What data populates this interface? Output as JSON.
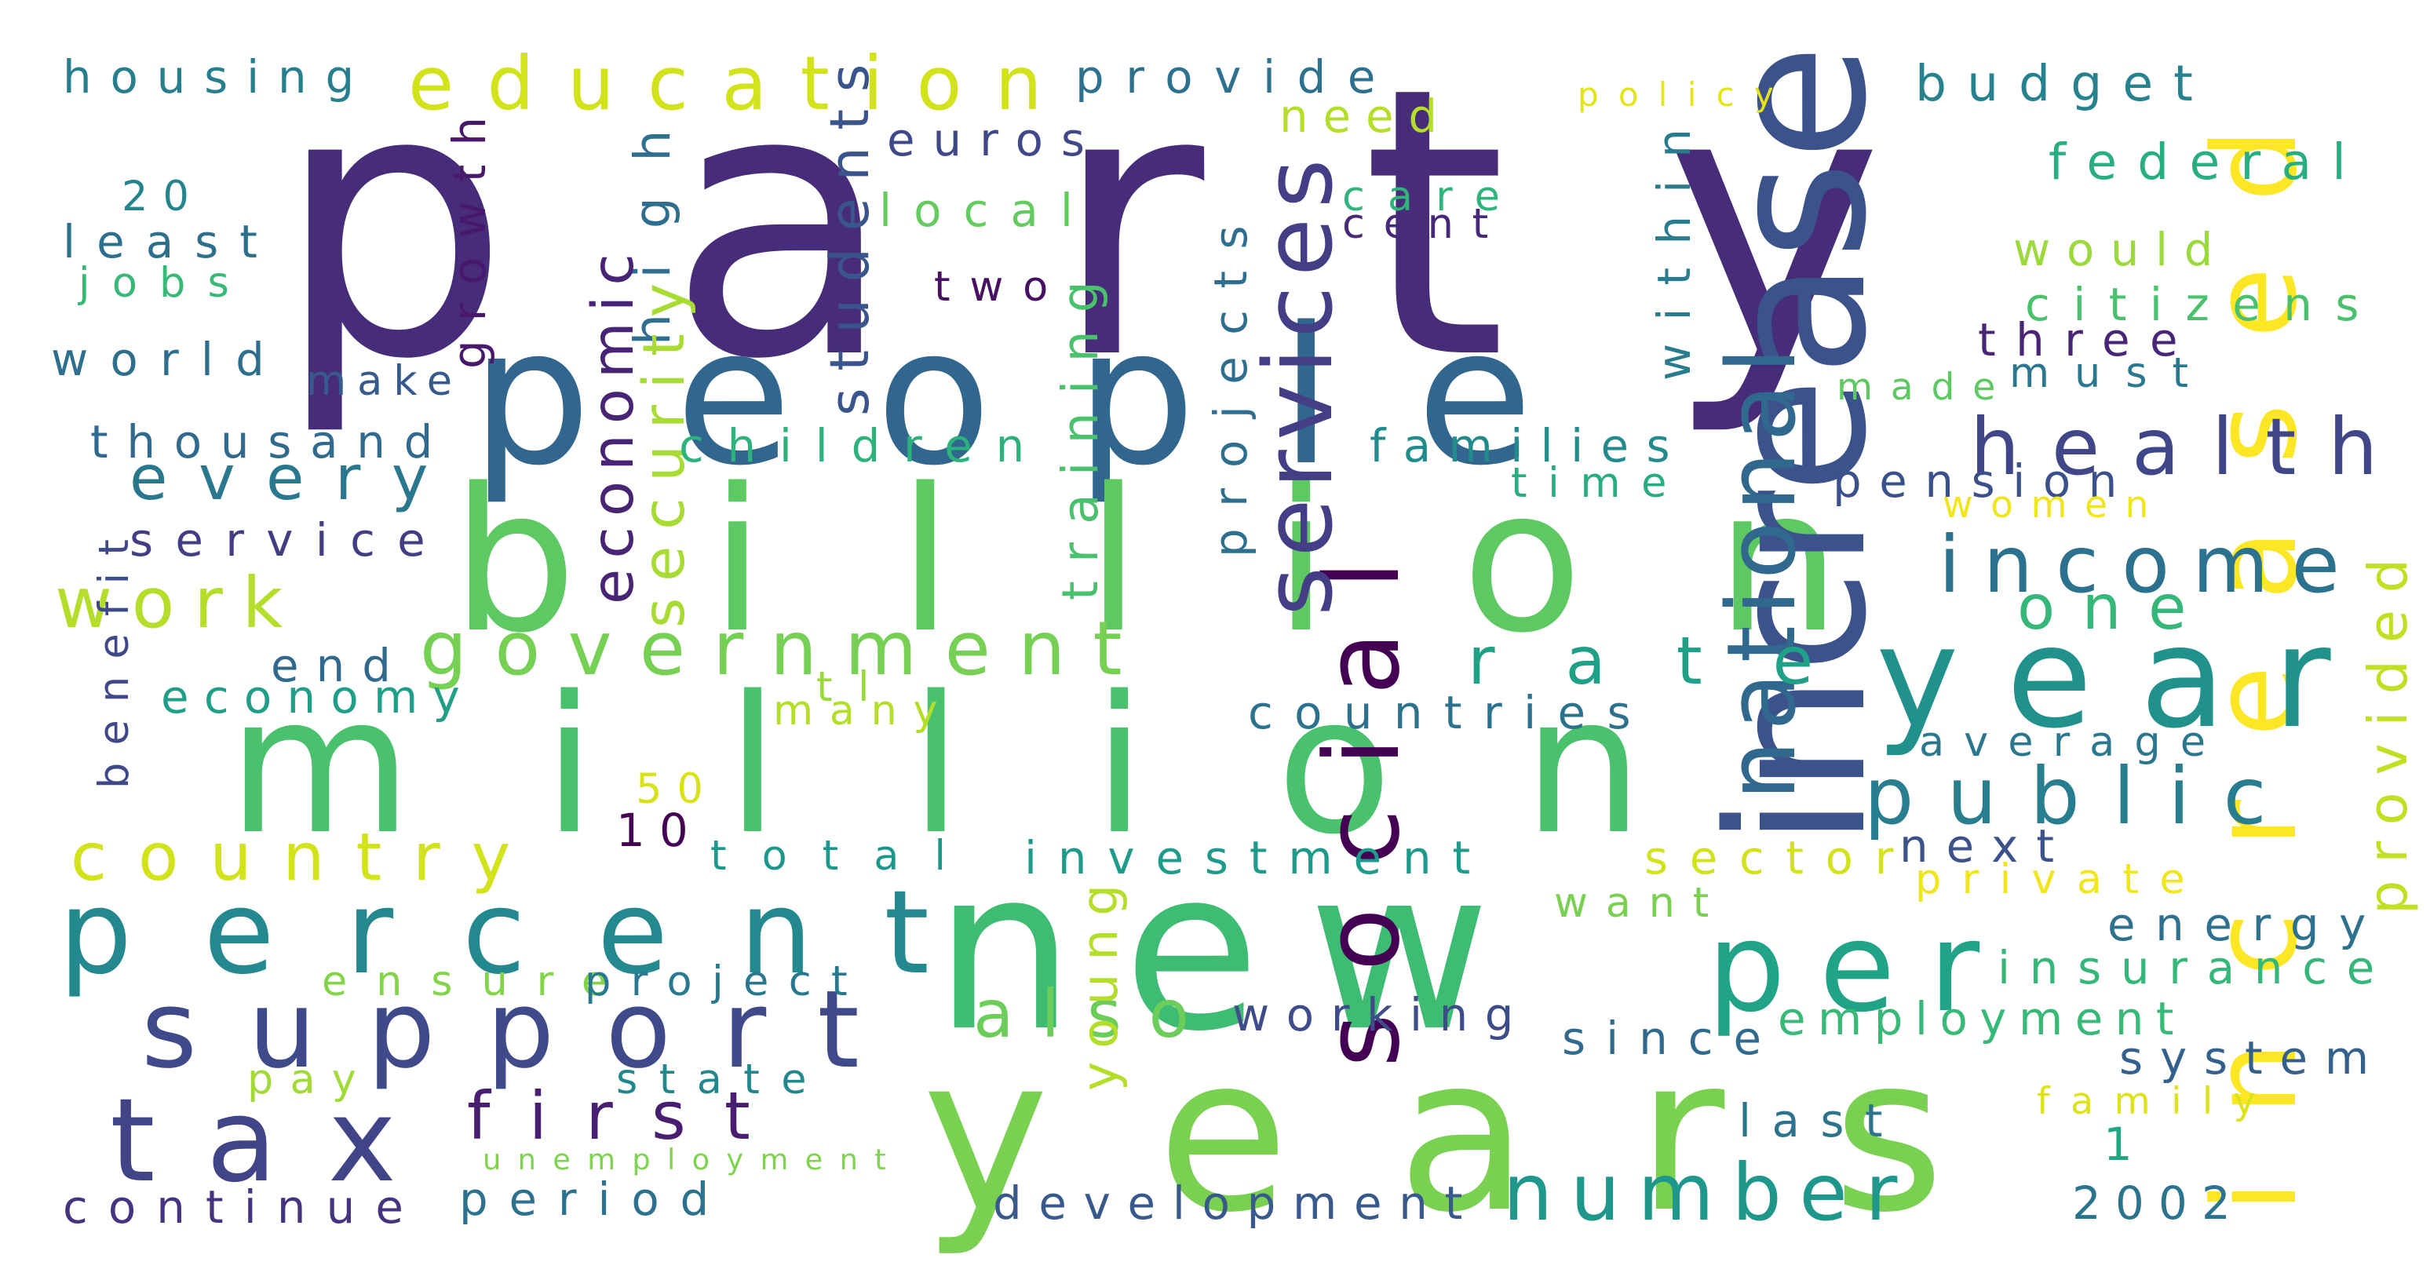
{
  "words": [
    {
      "text": "party",
      "color": "#472c7a"
    },
    {
      "text": "people",
      "color": "#31668e"
    },
    {
      "text": "billion",
      "color": "#5ec962"
    },
    {
      "text": "million",
      "color": "#4ac16d"
    },
    {
      "text": "new",
      "color": "#3fbc73"
    },
    {
      "text": "years",
      "color": "#7ad151"
    },
    {
      "text": "percent",
      "color": "#23898e"
    },
    {
      "text": "increase",
      "color": "#3b528b"
    },
    {
      "text": "increased",
      "color": "#fde725"
    },
    {
      "text": "year",
      "color": "#21918c"
    },
    {
      "text": "support",
      "color": "#3e4a89"
    },
    {
      "text": "tax",
      "color": "#414487"
    },
    {
      "text": "per",
      "color": "#20a386"
    },
    {
      "text": "social",
      "color": "#440154"
    },
    {
      "text": "national",
      "color": "#31688e"
    },
    {
      "text": "services",
      "color": "#433e85"
    },
    {
      "text": "health",
      "color": "#3f4788"
    },
    {
      "text": "income",
      "color": "#2c728e"
    },
    {
      "text": "public",
      "color": "#287d8e"
    },
    {
      "text": "government",
      "color": "#75d054"
    },
    {
      "text": "country",
      "color": "#d2e21b"
    },
    {
      "text": "education",
      "color": "#d2e21b"
    },
    {
      "text": "number",
      "color": "#1f988b"
    },
    {
      "text": "first",
      "color": "#481f70"
    },
    {
      "text": "rate",
      "color": "#1fa187"
    },
    {
      "text": "work",
      "color": "#b5de2b"
    },
    {
      "text": "every",
      "color": "#2a788e"
    },
    {
      "text": "one",
      "color": "#35b779"
    },
    {
      "text": "also",
      "color": "#6ccd5a"
    },
    {
      "text": "housing",
      "color": "#277f8e"
    },
    {
      "text": "provide",
      "color": "#2d718e"
    },
    {
      "text": "budget",
      "color": "#26828e"
    },
    {
      "text": "federal",
      "color": "#29af7f"
    },
    {
      "text": "policy",
      "color": "#e5e419"
    },
    {
      "text": "need",
      "color": "#b5de2b"
    },
    {
      "text": "euros",
      "color": "#3f4889"
    },
    {
      "text": "local",
      "color": "#63cb5f"
    },
    {
      "text": "care",
      "color": "#2fb47c"
    },
    {
      "text": "cent",
      "color": "#482878"
    },
    {
      "text": "would",
      "color": "#9bd93c"
    },
    {
      "text": "citizens",
      "color": "#4ac16d"
    },
    {
      "text": "three",
      "color": "#482576"
    },
    {
      "text": "made",
      "color": "#5ec962"
    },
    {
      "text": "must",
      "color": "#2a788e"
    },
    {
      "text": "two",
      "color": "#471063"
    },
    {
      "text": "growth",
      "color": "#48186a"
    },
    {
      "text": "high",
      "color": "#2e6e8e"
    },
    {
      "text": "security",
      "color": "#a8db34"
    },
    {
      "text": "economic",
      "color": "#482475"
    },
    {
      "text": "students",
      "color": "#3a548c"
    },
    {
      "text": "training",
      "color": "#4ac16d"
    },
    {
      "text": "projects",
      "color": "#2e6e8e"
    },
    {
      "text": "within",
      "color": "#287c8e"
    },
    {
      "text": "20",
      "color": "#25848e"
    },
    {
      "text": "least",
      "color": "#2d708e"
    },
    {
      "text": "jobs",
      "color": "#38b977"
    },
    {
      "text": "world",
      "color": "#2e6f8e"
    },
    {
      "text": "make",
      "color": "#375a8c"
    },
    {
      "text": "thousand",
      "color": "#306a8e"
    },
    {
      "text": "children",
      "color": "#2db27d"
    },
    {
      "text": "families",
      "color": "#228c8d"
    },
    {
      "text": "time",
      "color": "#27ad81"
    },
    {
      "text": "pension",
      "color": "#3b518b"
    },
    {
      "text": "women",
      "color": "#f1e51d"
    },
    {
      "text": "service",
      "color": "#433d84"
    },
    {
      "text": "benefit",
      "color": "#3f4889"
    },
    {
      "text": "end",
      "color": "#31688e"
    },
    {
      "text": "economy",
      "color": "#1f9f88"
    },
    {
      "text": "tl",
      "color": "#9bd93c"
    },
    {
      "text": "many",
      "color": "#b5de2b"
    },
    {
      "text": "countries",
      "color": "#2c728e"
    },
    {
      "text": "average",
      "color": "#2a778e"
    },
    {
      "text": "provided",
      "color": "#c2df23"
    },
    {
      "text": "50",
      "color": "#d8e219"
    },
    {
      "text": "10",
      "color": "#440154"
    },
    {
      "text": "total",
      "color": "#1f988b"
    },
    {
      "text": "investment",
      "color": "#1e9b8a"
    },
    {
      "text": "sector",
      "color": "#d2e21b"
    },
    {
      "text": "next",
      "color": "#3b528b"
    },
    {
      "text": "private",
      "color": "#f1e51d"
    },
    {
      "text": "want",
      "color": "#7ad151"
    },
    {
      "text": "energy",
      "color": "#2d718e"
    },
    {
      "text": "insurance",
      "color": "#35b779"
    },
    {
      "text": "young",
      "color": "#b5de2b"
    },
    {
      "text": "ensure",
      "color": "#84d44b"
    },
    {
      "text": "project",
      "color": "#2a788e"
    },
    {
      "text": "working",
      "color": "#3e4c8a"
    },
    {
      "text": "since",
      "color": "#306a8e"
    },
    {
      "text": "employment",
      "color": "#38b977"
    },
    {
      "text": "system",
      "color": "#34608d"
    },
    {
      "text": "pay",
      "color": "#a2da37"
    },
    {
      "text": "state",
      "color": "#23888e"
    },
    {
      "text": "last",
      "color": "#2c738e"
    },
    {
      "text": "family",
      "color": "#dde318"
    },
    {
      "text": "1",
      "color": "#22a785"
    },
    {
      "text": "unemployment",
      "color": "#7fd34e"
    },
    {
      "text": "continue",
      "color": "#46337f"
    },
    {
      "text": "period",
      "color": "#2c728e"
    },
    {
      "text": "development",
      "color": "#38598c"
    },
    {
      "text": "2002",
      "color": "#2c738e"
    }
  ]
}
